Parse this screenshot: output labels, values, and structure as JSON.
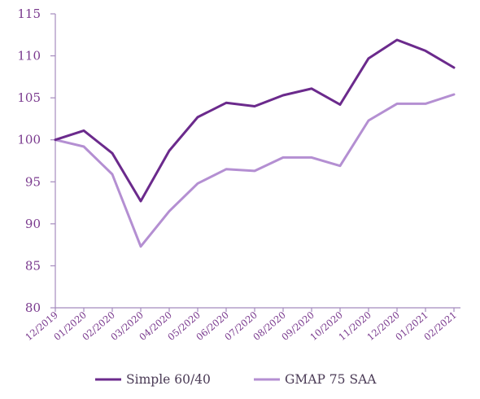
{
  "chart_data": {
    "type": "line",
    "title": "",
    "xlabel": "",
    "ylabel": "",
    "categories": [
      "12/2019",
      "01/2020",
      "02/2020",
      "03/2020",
      "04/2020",
      "05/2020",
      "06/2020",
      "07/2020",
      "08/2020",
      "09/2020",
      "10/2020",
      "11/2020",
      "12/2020",
      "01/2021",
      "02/2021"
    ],
    "ylim": [
      80,
      115
    ],
    "yticks": [
      "80",
      "85",
      "90",
      "95",
      "100",
      "105",
      "110",
      "115"
    ],
    "grid": false,
    "legend_position": "bottom",
    "series": [
      {
        "name": "Simple 60/40",
        "color": "#6b2a8c",
        "values": [
          100,
          101.1,
          98.4,
          92.7,
          98.7,
          102.7,
          104.4,
          104.0,
          105.3,
          106.1,
          104.2,
          109.7,
          111.9,
          110.6,
          108.6
        ]
      },
      {
        "name": "GMAP 75 SAA",
        "color": "#b48fd2",
        "values": [
          100,
          99.2,
          95.9,
          87.3,
          91.5,
          94.8,
          96.5,
          96.3,
          97.9,
          97.9,
          96.9,
          102.3,
          104.3,
          104.3,
          105.4
        ]
      }
    ]
  }
}
